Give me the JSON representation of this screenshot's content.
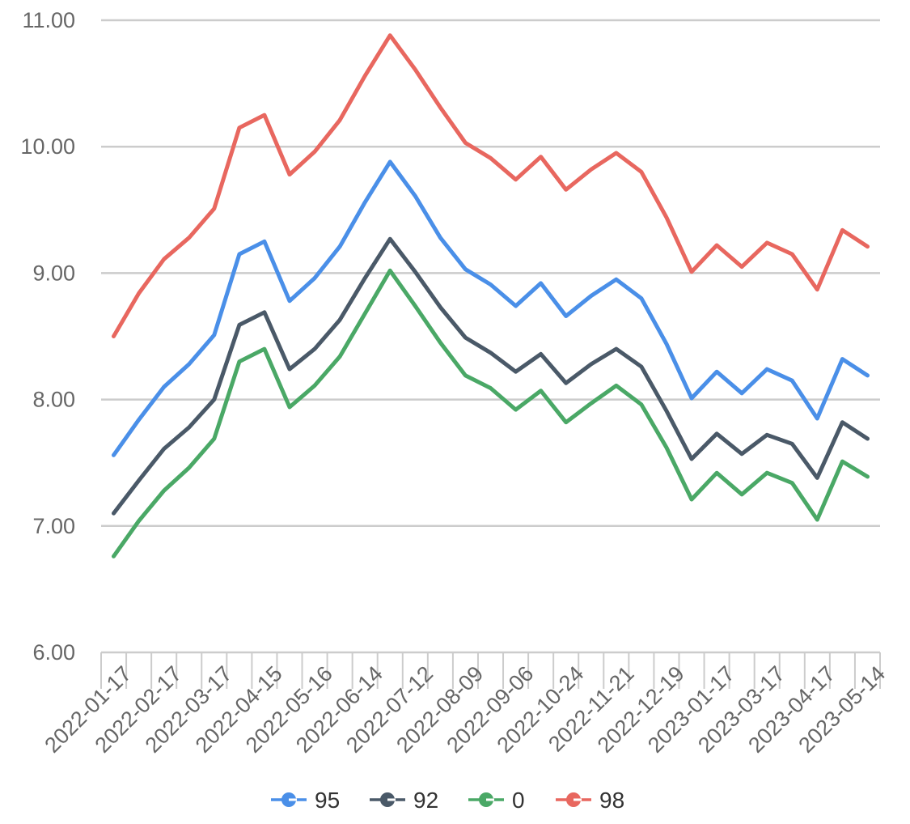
{
  "chart_data": {
    "type": "line",
    "x_tick_labels": [
      "2022-01-17",
      "2022-02-17",
      "2022-03-17",
      "2022-04-15",
      "2022-05-16",
      "2022-06-14",
      "2022-07-12",
      "2022-08-09",
      "2022-09-06",
      "2022-10-24",
      "2022-11-21",
      "2022-12-19",
      "2023-01-17",
      "2023-03-17",
      "2023-04-17",
      "2023-05-14"
    ],
    "y_tick_labels": [
      "6.00",
      "7.00",
      "8.00",
      "9.00",
      "10.00",
      "11.00"
    ],
    "ylim": [
      6,
      11
    ],
    "grid": true,
    "legend_position": "bottom",
    "series": [
      {
        "name": "95",
        "color": "#4a8fe8",
        "values": [
          7.56,
          7.84,
          8.1,
          8.28,
          8.51,
          9.15,
          9.25,
          8.78,
          8.96,
          9.21,
          9.56,
          9.88,
          9.61,
          9.28,
          9.03,
          8.91,
          8.74,
          8.92,
          8.66,
          8.82,
          8.95,
          8.8,
          8.44,
          8.01,
          8.22,
          8.05,
          8.24,
          8.15,
          7.85,
          8.32,
          8.19
        ]
      },
      {
        "name": "92",
        "color": "#4a5968",
        "values": [
          7.1,
          7.36,
          7.61,
          7.78,
          8.0,
          8.59,
          8.69,
          8.24,
          8.4,
          8.63,
          8.96,
          9.27,
          9.01,
          8.73,
          8.49,
          8.37,
          8.22,
          8.36,
          8.13,
          8.28,
          8.4,
          8.26,
          7.91,
          7.53,
          7.73,
          7.57,
          7.72,
          7.65,
          7.38,
          7.82,
          7.69
        ]
      },
      {
        "name": "0",
        "color": "#4aa866",
        "values": [
          6.76,
          7.04,
          7.28,
          7.46,
          7.69,
          8.3,
          8.4,
          7.94,
          8.11,
          8.34,
          8.68,
          9.02,
          8.74,
          8.45,
          8.19,
          8.09,
          7.92,
          8.07,
          7.82,
          7.97,
          8.11,
          7.96,
          7.62,
          7.21,
          7.42,
          7.25,
          7.42,
          7.34,
          7.05,
          7.51,
          7.39
        ]
      },
      {
        "name": "98",
        "color": "#e8675f",
        "values": [
          8.5,
          8.84,
          9.11,
          9.28,
          9.51,
          10.15,
          10.25,
          9.78,
          9.96,
          10.21,
          10.56,
          10.88,
          10.61,
          10.31,
          10.03,
          9.91,
          9.74,
          9.92,
          9.66,
          9.82,
          9.95,
          9.8,
          9.44,
          9.01,
          9.22,
          9.05,
          9.24,
          9.15,
          8.87,
          9.34,
          9.21
        ]
      }
    ]
  }
}
